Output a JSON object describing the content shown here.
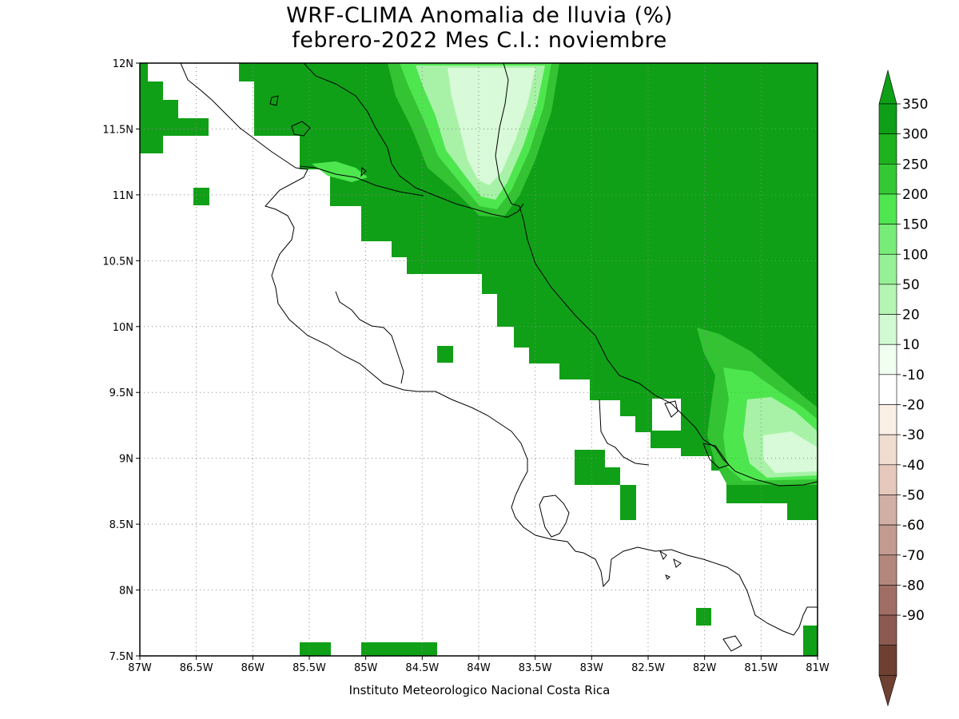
{
  "title_line1": "WRF-CLIMA Anomalia de lluvia (%)",
  "title_line2": "febrero-2022 Mes C.I.: noviembre",
  "credit": "Instituto Meteorologico Nacional Costa Rica",
  "map": {
    "lon_range": [
      -87,
      -81
    ],
    "lat_range": [
      7.5,
      12
    ],
    "lon_ticks": [
      {
        "v": -87,
        "label": "87W"
      },
      {
        "v": -86.5,
        "label": "86.5W"
      },
      {
        "v": -86,
        "label": "86W"
      },
      {
        "v": -85.5,
        "label": "85.5W"
      },
      {
        "v": -85,
        "label": "85W"
      },
      {
        "v": -84.5,
        "label": "84.5W"
      },
      {
        "v": -84,
        "label": "84W"
      },
      {
        "v": -83.5,
        "label": "83.5W"
      },
      {
        "v": -83,
        "label": "83W"
      },
      {
        "v": -82.5,
        "label": "82.5W"
      },
      {
        "v": -82,
        "label": "82W"
      },
      {
        "v": -81.5,
        "label": "81.5W"
      },
      {
        "v": -81,
        "label": "81W"
      }
    ],
    "lat_ticks": [
      {
        "v": 7.5,
        "label": "7.5N"
      },
      {
        "v": 8,
        "label": "8N"
      },
      {
        "v": 8.5,
        "label": "8.5N"
      },
      {
        "v": 9,
        "label": "9N"
      },
      {
        "v": 9.5,
        "label": "9.5N"
      },
      {
        "v": 10,
        "label": "10N"
      },
      {
        "v": 10.5,
        "label": "10.5N"
      },
      {
        "v": 11,
        "label": "11N"
      },
      {
        "v": 11.5,
        "label": "11.5N"
      },
      {
        "v": 12,
        "label": "12N"
      }
    ],
    "grid": "dotted",
    "variable": "rainfall anomaly (%)"
  },
  "colorbar": {
    "labels": [
      "350",
      "300",
      "250",
      "200",
      "150",
      "100",
      "50",
      "20",
      "10",
      "-10",
      "-20",
      "-30",
      "-40",
      "-50",
      "-60",
      "-70",
      "-80",
      "-90"
    ],
    "colors": [
      "#0f9e17",
      "#1eb21e",
      "#34c834",
      "#50e650",
      "#78ec78",
      "#96f096",
      "#b4f5b4",
      "#d2fad2",
      "#f0fff0",
      "#ffffff",
      "#faf0e6",
      "#f0ddd0",
      "#e6c8bc",
      "#d2afa5",
      "#c39b91",
      "#b4877d",
      "#a06e64",
      "#8c5a50",
      "#6e4032"
    ],
    "arrow_top_color": "#0f9e17",
    "arrow_bottom_color": "#6e4032"
  },
  "colors": {
    "dark_green": "#10a017",
    "mid_green": "#33c333",
    "bright_green": "#4ee64e",
    "light_green": "#a8f2a8",
    "pale_green": "#d8fad8"
  }
}
